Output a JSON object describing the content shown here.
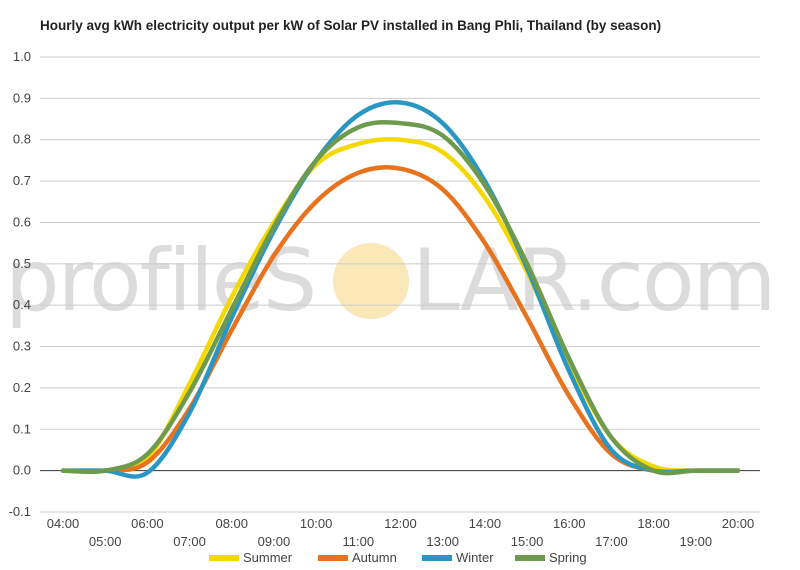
{
  "chart_data": {
    "type": "line",
    "title": "Hourly avg kWh electricity output per kW of Solar PV installed in Bang Phli, Thailand (by season)",
    "xlabel": "",
    "ylabel": "",
    "x": [
      "04:00",
      "05:00",
      "06:00",
      "07:00",
      "08:00",
      "09:00",
      "10:00",
      "11:00",
      "12:00",
      "13:00",
      "14:00",
      "15:00",
      "16:00",
      "17:00",
      "18:00",
      "19:00",
      "20:00"
    ],
    "ylim": [
      -0.1,
      1.0
    ],
    "yticks": [
      "-0.1",
      "0.0",
      "0.1",
      "0.2",
      "0.3",
      "0.4",
      "0.5",
      "0.6",
      "0.7",
      "0.8",
      "0.9",
      "1.0"
    ],
    "grid": true,
    "legend_position": "bottom",
    "series": [
      {
        "name": "Summer",
        "color": "#f5d800",
        "values": [
          0.0,
          0.0,
          0.03,
          0.21,
          0.42,
          0.6,
          0.74,
          0.79,
          0.8,
          0.77,
          0.66,
          0.48,
          0.26,
          0.08,
          0.01,
          0.0,
          0.0
        ]
      },
      {
        "name": "Autumn",
        "color": "#e8731f",
        "values": [
          0.0,
          0.0,
          0.02,
          0.15,
          0.34,
          0.52,
          0.65,
          0.72,
          0.73,
          0.68,
          0.55,
          0.37,
          0.18,
          0.04,
          0.0,
          0.0,
          0.0
        ]
      },
      {
        "name": "Winter",
        "color": "#2996c4",
        "values": [
          0.0,
          0.0,
          -0.005,
          0.14,
          0.37,
          0.58,
          0.75,
          0.86,
          0.89,
          0.84,
          0.7,
          0.49,
          0.24,
          0.05,
          0.0,
          0.0,
          0.0
        ]
      },
      {
        "name": "Spring",
        "color": "#6e9a4e",
        "values": [
          0.0,
          0.0,
          0.04,
          0.19,
          0.39,
          0.59,
          0.75,
          0.83,
          0.84,
          0.81,
          0.69,
          0.5,
          0.27,
          0.08,
          0.0,
          0.0,
          0.0
        ]
      }
    ]
  },
  "watermark": {
    "left_text": "profileS",
    "right_text": "LAR.com",
    "sun_color": "#fbe8b8"
  }
}
